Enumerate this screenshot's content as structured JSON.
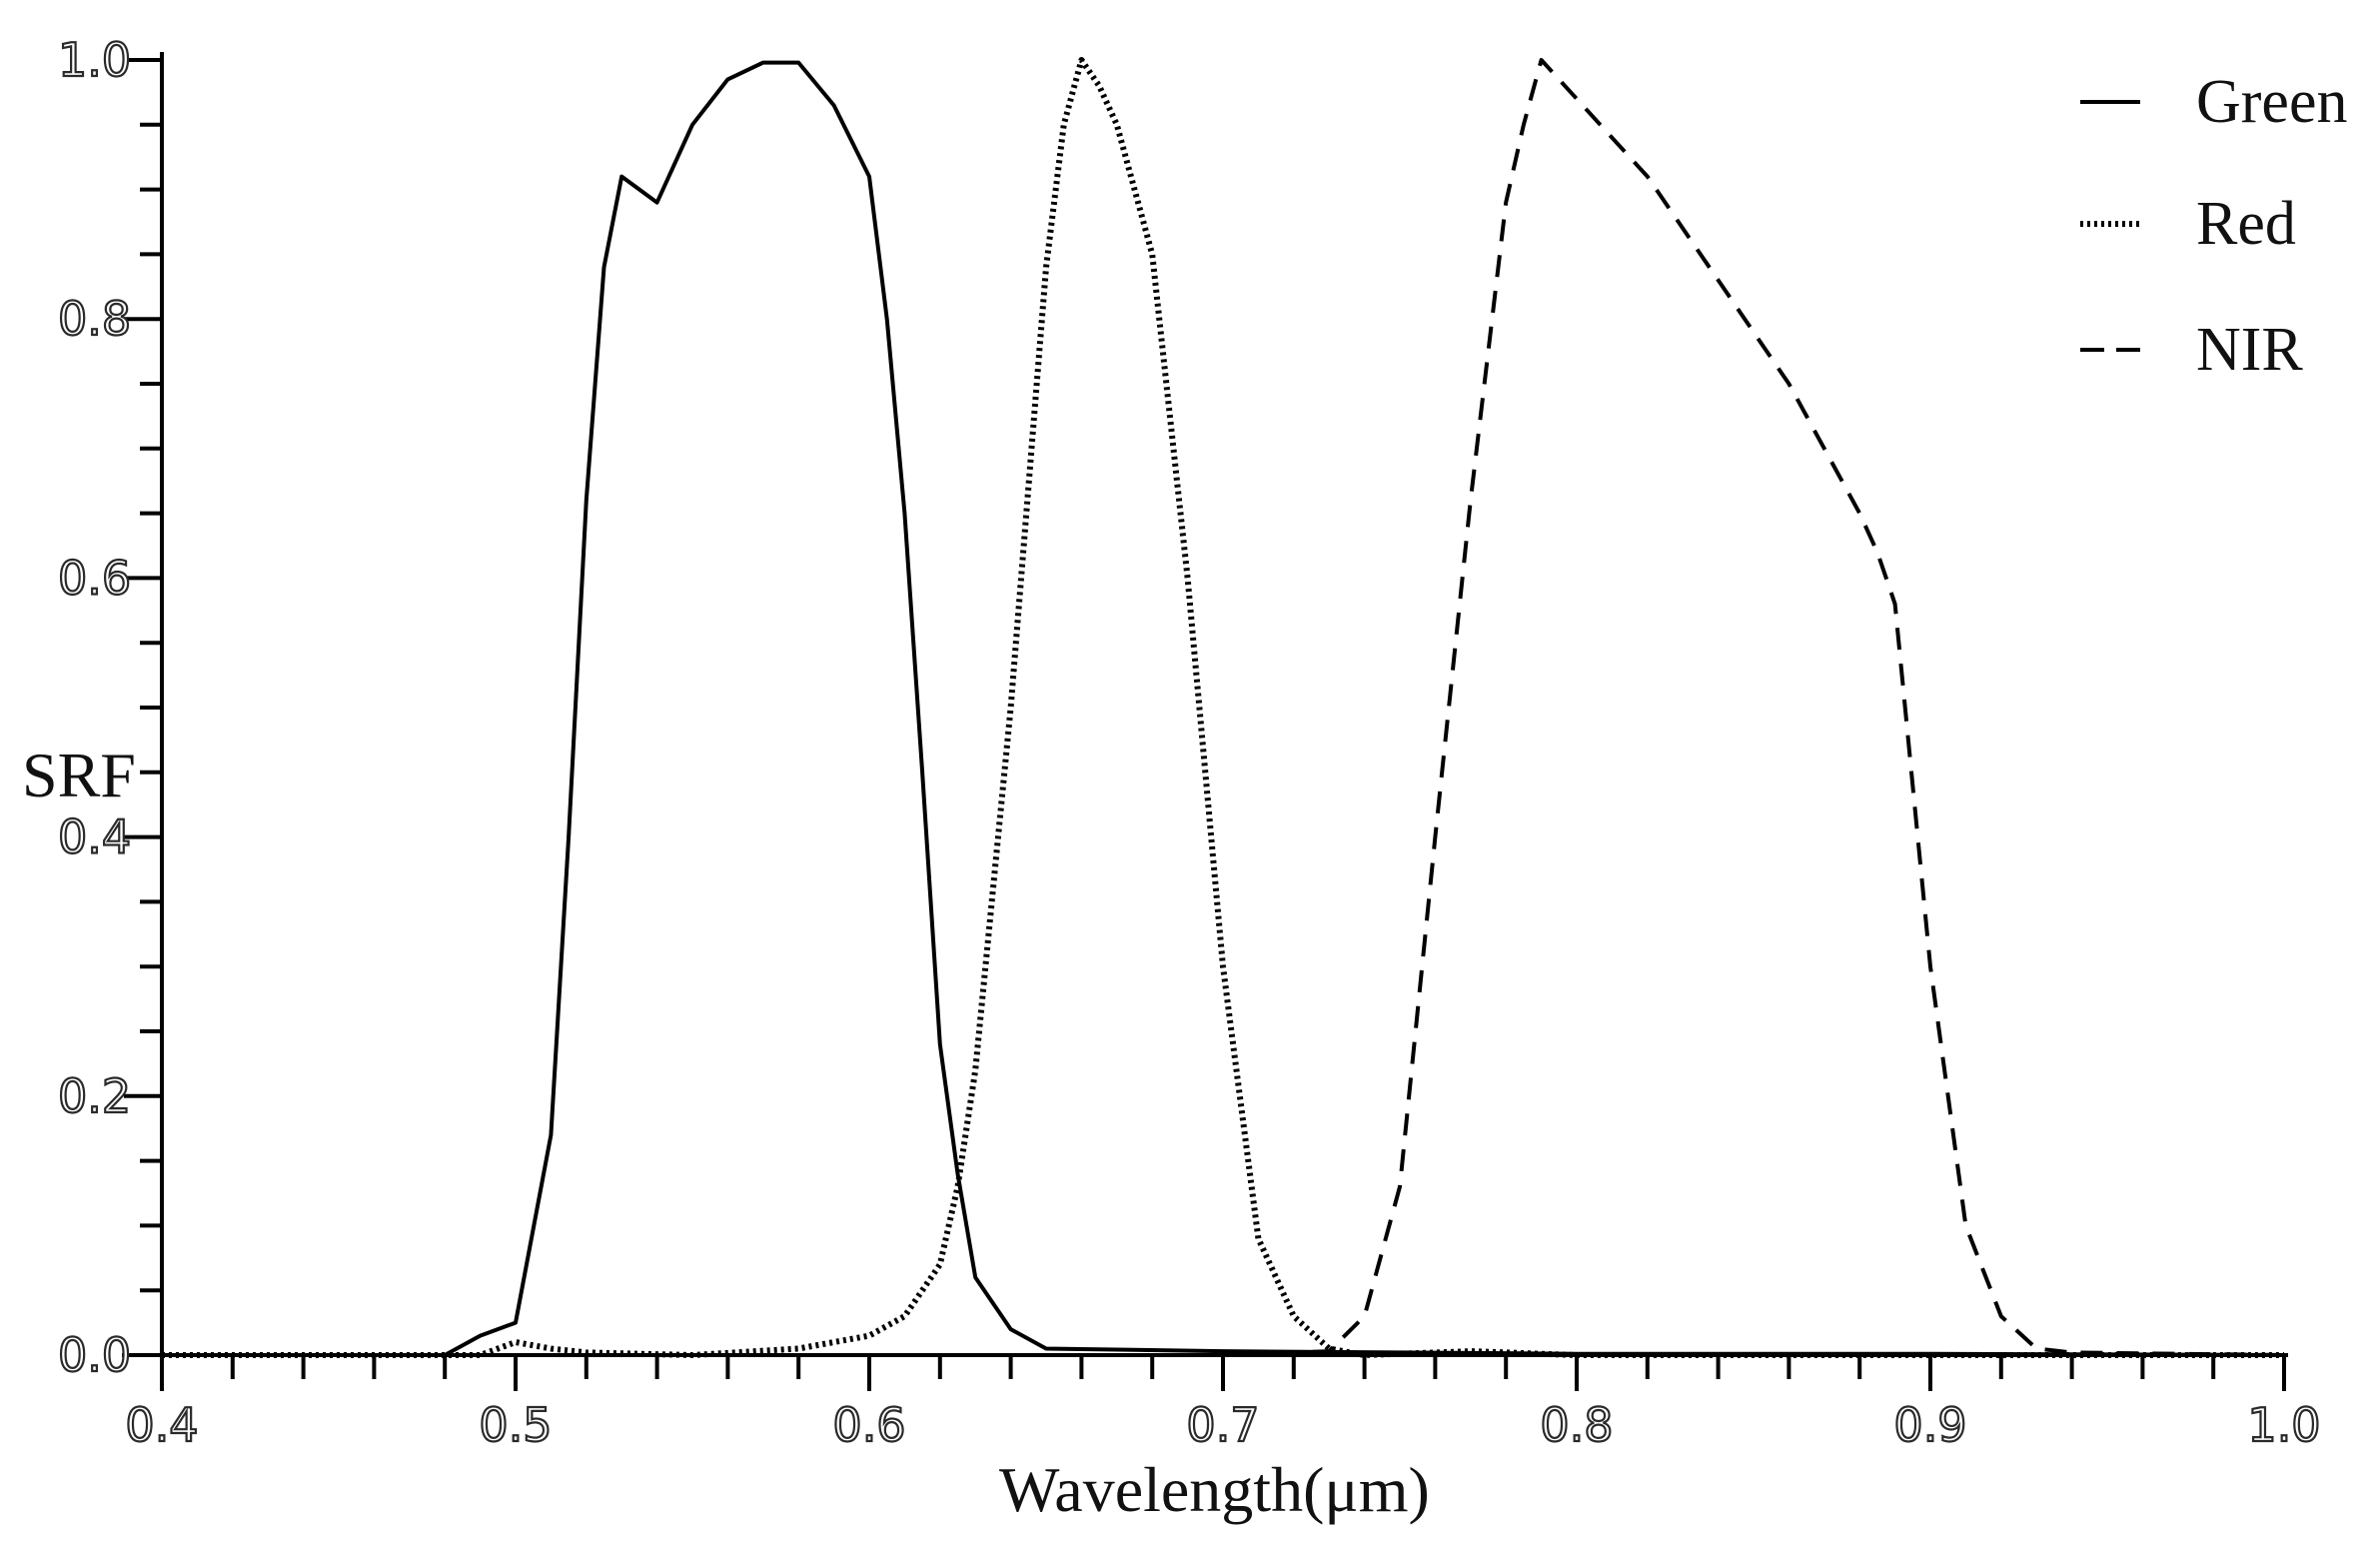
{
  "chart_data": {
    "type": "line",
    "xlabel": "Wavelength(μm)",
    "ylabel": "SRF",
    "xlim": [
      0.4,
      1.0
    ],
    "ylim": [
      0.0,
      1.0
    ],
    "xticks": [
      "0.4",
      "0.5",
      "0.6",
      "0.7",
      "0.8",
      "0.9",
      "1.0"
    ],
    "yticks": [
      "0.0",
      "0.2",
      "0.4",
      "0.6",
      "0.8",
      "1.0"
    ],
    "grid": false,
    "legend_position": "top-right",
    "series": [
      {
        "name": "Green",
        "style": "solid",
        "color": "#000000",
        "points": [
          [
            0.4,
            0.0
          ],
          [
            0.48,
            0.0
          ],
          [
            0.49,
            0.015
          ],
          [
            0.5,
            0.025
          ],
          [
            0.51,
            0.17
          ],
          [
            0.515,
            0.4
          ],
          [
            0.52,
            0.66
          ],
          [
            0.525,
            0.84
          ],
          [
            0.53,
            0.91
          ],
          [
            0.54,
            0.89
          ],
          [
            0.55,
            0.95
          ],
          [
            0.56,
            0.985
          ],
          [
            0.57,
            0.998
          ],
          [
            0.58,
            0.998
          ],
          [
            0.59,
            0.965
          ],
          [
            0.6,
            0.91
          ],
          [
            0.605,
            0.8
          ],
          [
            0.61,
            0.65
          ],
          [
            0.615,
            0.45
          ],
          [
            0.62,
            0.24
          ],
          [
            0.625,
            0.14
          ],
          [
            0.63,
            0.06
          ],
          [
            0.64,
            0.02
          ],
          [
            0.65,
            0.005
          ],
          [
            0.7,
            0.003
          ],
          [
            0.75,
            0.002
          ],
          [
            0.8,
            0.001
          ],
          [
            0.9,
            0.001
          ],
          [
            1.0,
            0.0
          ]
        ]
      },
      {
        "name": "Red",
        "style": "dotted",
        "color": "#000000",
        "points": [
          [
            0.4,
            0.0
          ],
          [
            0.49,
            0.0
          ],
          [
            0.5,
            0.01
          ],
          [
            0.51,
            0.005
          ],
          [
            0.52,
            0.002
          ],
          [
            0.55,
            0.0
          ],
          [
            0.58,
            0.005
          ],
          [
            0.6,
            0.015
          ],
          [
            0.61,
            0.03
          ],
          [
            0.62,
            0.07
          ],
          [
            0.625,
            0.13
          ],
          [
            0.63,
            0.22
          ],
          [
            0.64,
            0.5
          ],
          [
            0.65,
            0.84
          ],
          [
            0.655,
            0.95
          ],
          [
            0.66,
            1.0
          ],
          [
            0.665,
            0.98
          ],
          [
            0.67,
            0.95
          ],
          [
            0.68,
            0.85
          ],
          [
            0.69,
            0.6
          ],
          [
            0.7,
            0.3
          ],
          [
            0.71,
            0.09
          ],
          [
            0.72,
            0.03
          ],
          [
            0.73,
            0.005
          ],
          [
            0.74,
            0.0
          ],
          [
            0.77,
            0.003
          ],
          [
            0.8,
            0.0
          ],
          [
            1.0,
            0.0
          ]
        ]
      },
      {
        "name": "NIR",
        "style": "dashed",
        "color": "#000000",
        "points": [
          [
            0.4,
            0.0
          ],
          [
            0.62,
            0.0
          ],
          [
            0.7,
            0.0
          ],
          [
            0.73,
            0.003
          ],
          [
            0.74,
            0.03
          ],
          [
            0.75,
            0.13
          ],
          [
            0.76,
            0.4
          ],
          [
            0.77,
            0.66
          ],
          [
            0.78,
            0.89
          ],
          [
            0.785,
            0.95
          ],
          [
            0.79,
            1.0
          ],
          [
            0.8,
            0.97
          ],
          [
            0.81,
            0.94
          ],
          [
            0.82,
            0.91
          ],
          [
            0.83,
            0.87
          ],
          [
            0.84,
            0.83
          ],
          [
            0.85,
            0.79
          ],
          [
            0.86,
            0.75
          ],
          [
            0.87,
            0.7
          ],
          [
            0.88,
            0.65
          ],
          [
            0.885,
            0.62
          ],
          [
            0.89,
            0.58
          ],
          [
            0.9,
            0.3
          ],
          [
            0.91,
            0.1
          ],
          [
            0.92,
            0.03
          ],
          [
            0.93,
            0.005
          ],
          [
            0.94,
            0.002
          ],
          [
            1.0,
            0.0
          ]
        ]
      }
    ]
  }
}
